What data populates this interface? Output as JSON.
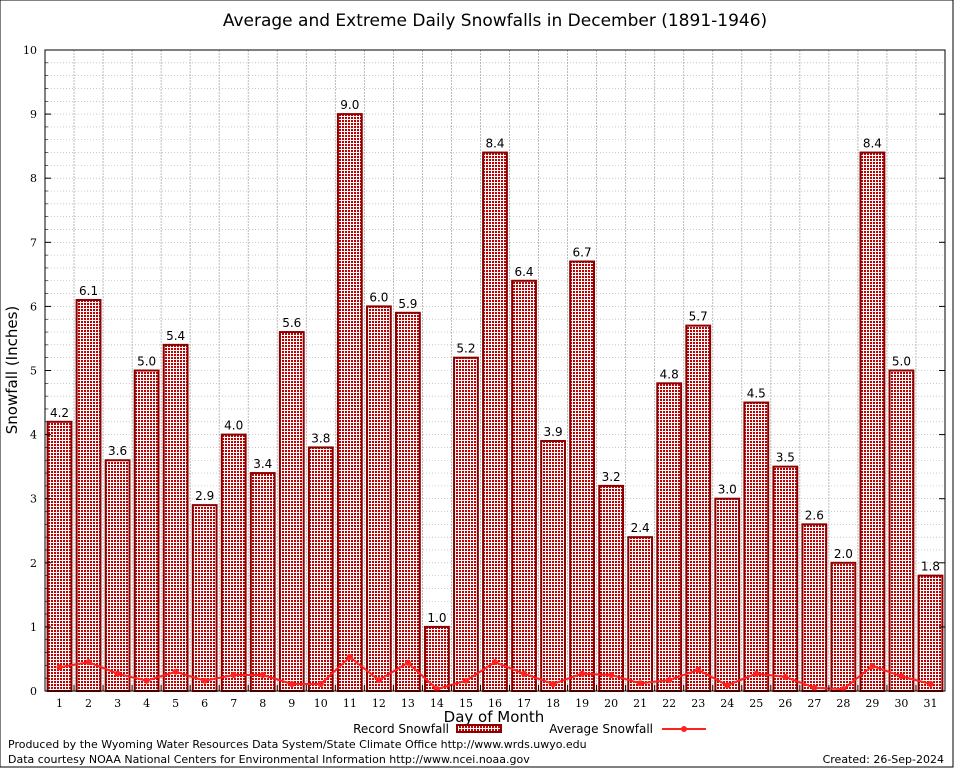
{
  "chart_data": {
    "type": "bar",
    "title": "Average and Extreme Daily Snowfalls in December (1891-1946)",
    "xlabel": "Day of Month",
    "ylabel": "Snowfall (Inches)",
    "ylim": [
      0,
      10
    ],
    "yticks": [
      "0",
      "1",
      "2",
      "3",
      "4",
      "5",
      "6",
      "7",
      "8",
      "9",
      "10"
    ],
    "categories": [
      "1",
      "2",
      "3",
      "4",
      "5",
      "6",
      "7",
      "8",
      "9",
      "10",
      "11",
      "12",
      "13",
      "14",
      "15",
      "16",
      "17",
      "18",
      "19",
      "20",
      "21",
      "22",
      "23",
      "24",
      "25",
      "26",
      "27",
      "28",
      "29",
      "30",
      "31"
    ],
    "series": [
      {
        "name": "Record Snowfall",
        "type": "bar",
        "color": "#8b0000",
        "values": [
          4.2,
          6.1,
          3.6,
          5.0,
          5.4,
          2.9,
          4.0,
          3.4,
          5.6,
          3.8,
          9.0,
          6.0,
          5.9,
          1.0,
          5.2,
          8.4,
          6.4,
          3.9,
          6.7,
          3.2,
          2.4,
          4.8,
          5.7,
          3.0,
          4.5,
          3.5,
          2.6,
          2.0,
          8.4,
          5.0,
          1.8
        ],
        "labels": [
          "4.2",
          "6.1",
          "3.6",
          "5.0",
          "5.4",
          "2.9",
          "4.0",
          "3.4",
          "5.6",
          "3.8",
          "9.0",
          "6.0",
          "5.9",
          "1.0",
          "5.2",
          "8.4",
          "6.4",
          "3.9",
          "6.7",
          "3.2",
          "2.4",
          "4.8",
          "5.7",
          "3.0",
          "4.5",
          "3.5",
          "2.6",
          "2.0",
          "8.4",
          "5.0",
          "1.8"
        ]
      },
      {
        "name": "Average Snowfall",
        "type": "line",
        "color": "#ff2020",
        "values": [
          0.37,
          0.45,
          0.27,
          0.16,
          0.3,
          0.16,
          0.25,
          0.25,
          0.11,
          0.11,
          0.53,
          0.17,
          0.44,
          0.03,
          0.16,
          0.45,
          0.27,
          0.11,
          0.27,
          0.25,
          0.12,
          0.17,
          0.33,
          0.09,
          0.27,
          0.22,
          0.05,
          0.03,
          0.39,
          0.23,
          0.11
        ]
      }
    ],
    "grid": true,
    "legend": "bottom-center"
  },
  "footer": {
    "line1": "Produced by the Wyoming Water Resources Data System/State Climate Office http://www.wrds.uwyo.edu",
    "line2": "Data courtesy NOAA National Centers for Environmental Information http://www.ncei.noaa.gov",
    "created": "Created:  26-Sep-2024"
  }
}
